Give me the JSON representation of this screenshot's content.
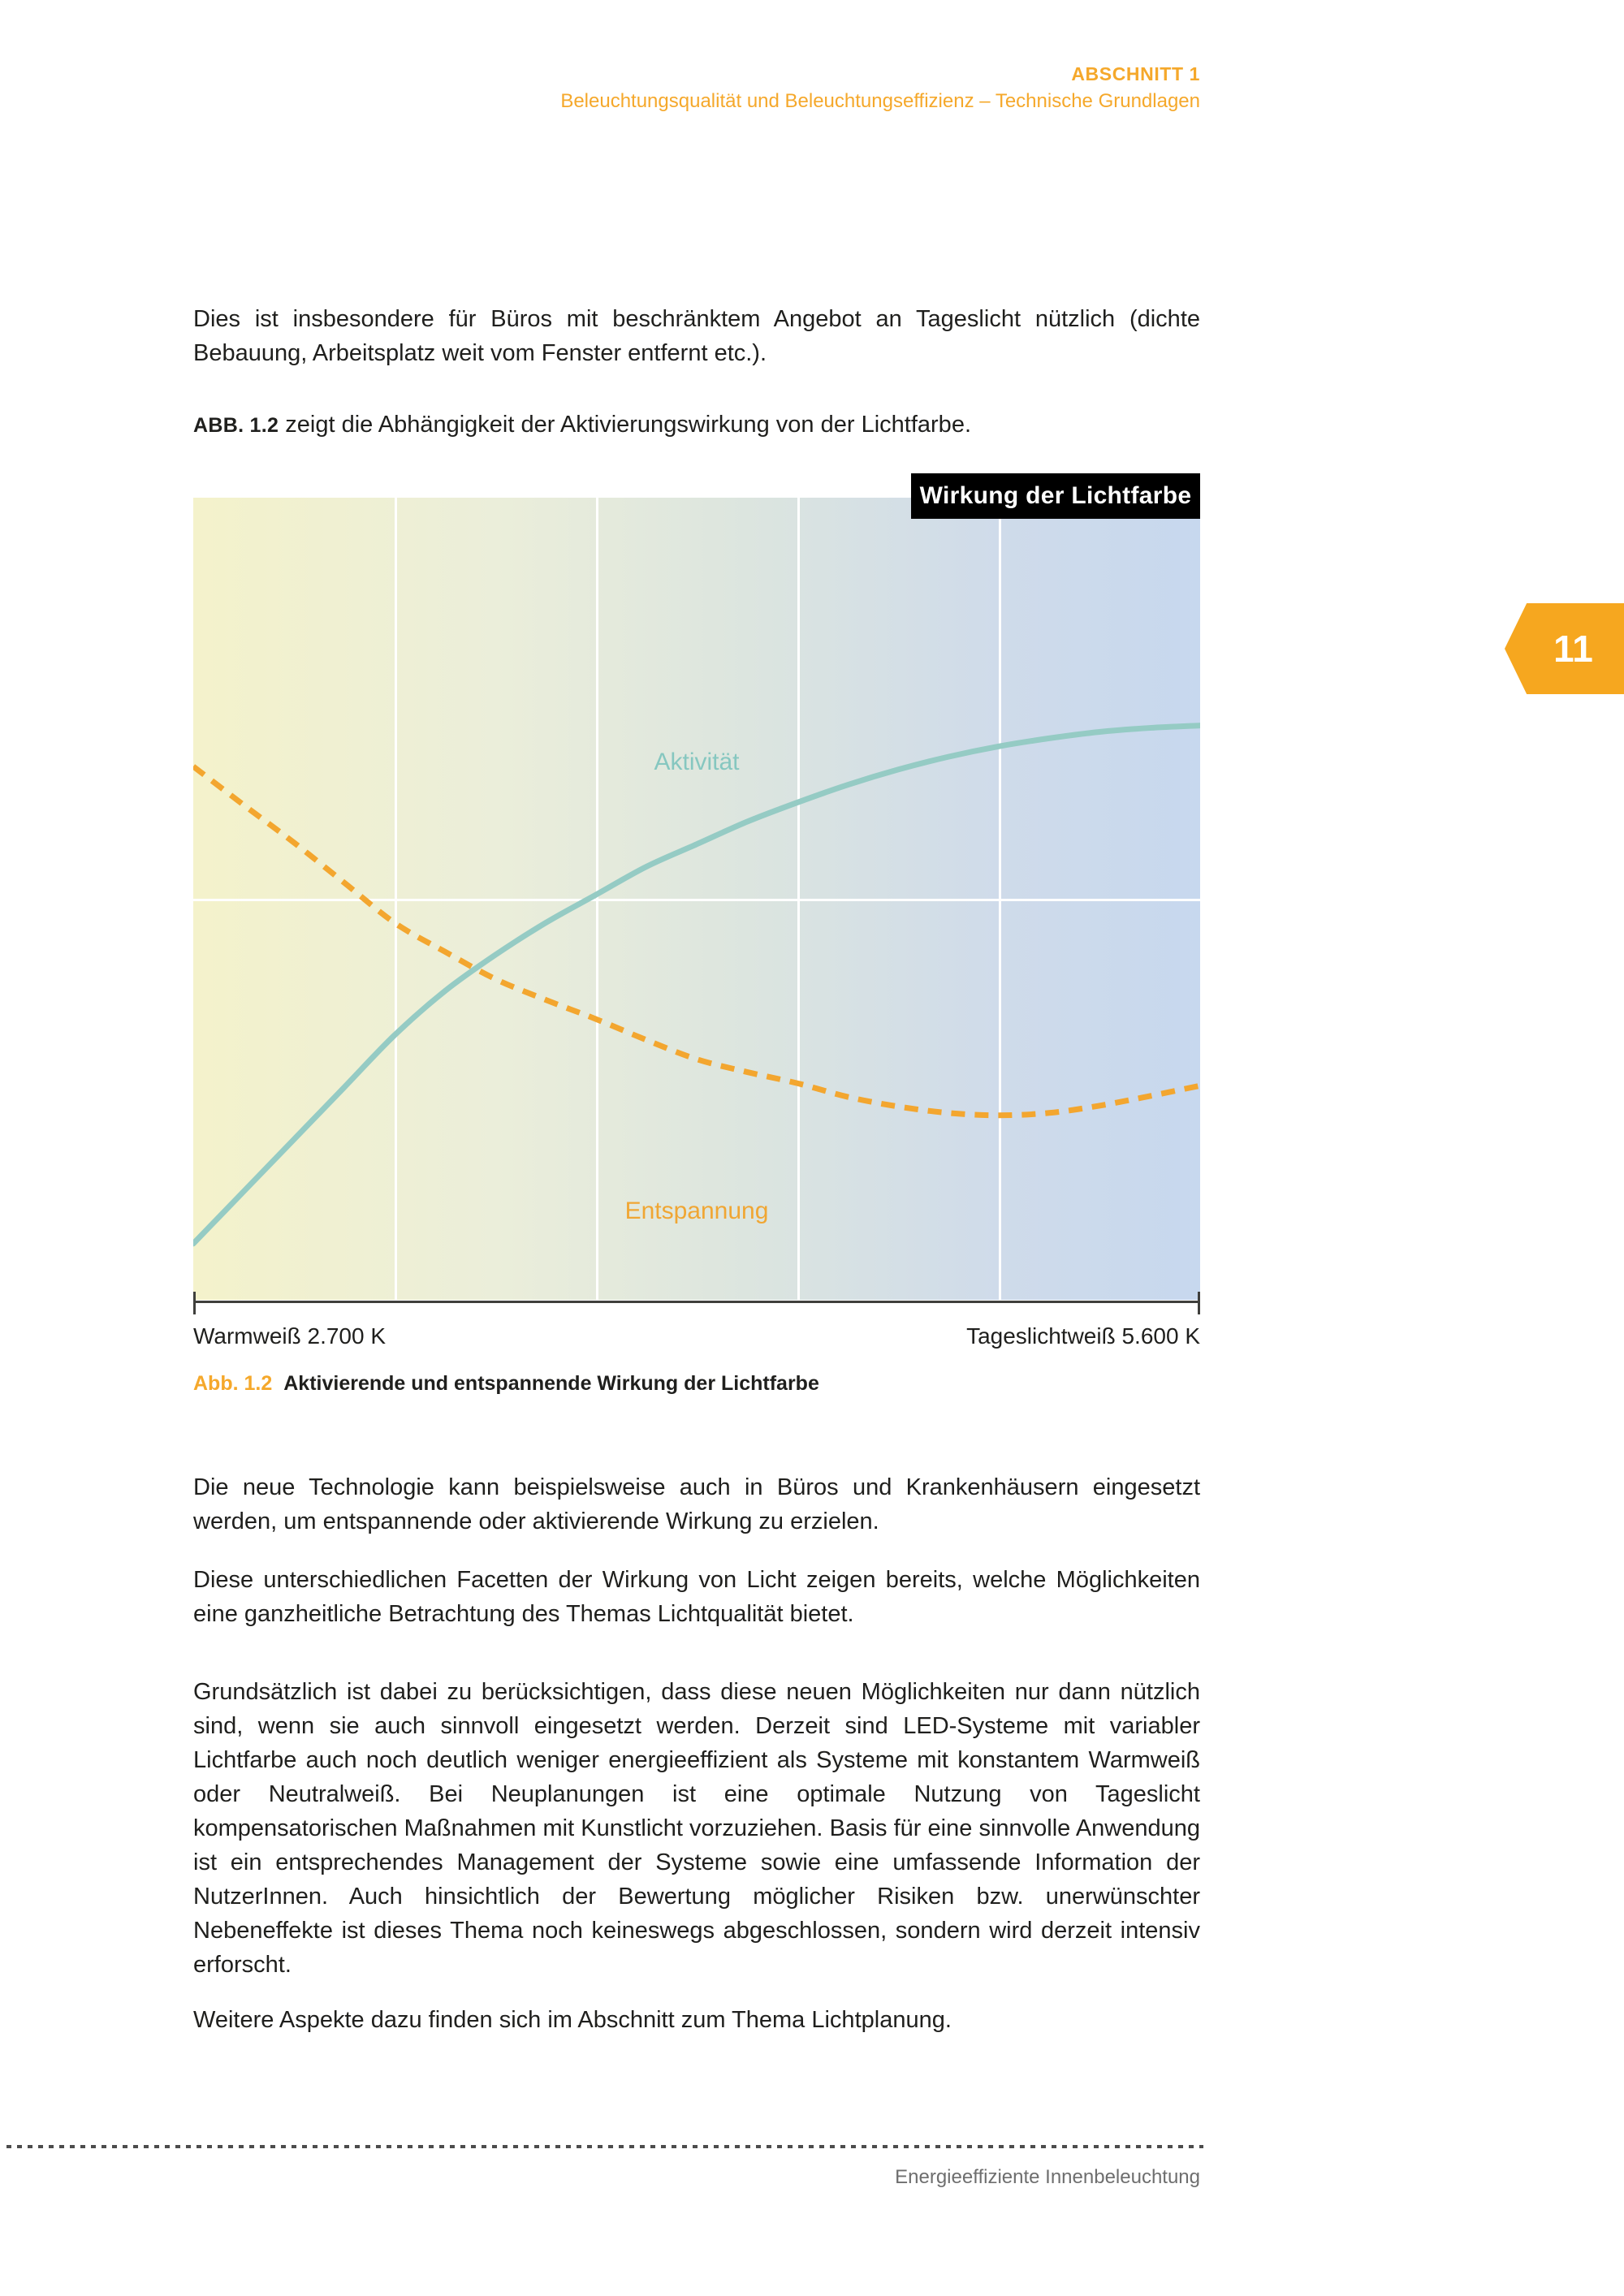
{
  "header": {
    "kicker": "ABSCHNITT 1",
    "subtitle": "Beleuchtungsqualität und Beleuchtungseffizienz – Technische Grundlagen"
  },
  "content": {
    "p1": "Dies ist insbesondere für Büros mit beschränktem Angebot an Tageslicht nützlich (dichte Bebauung, Arbeitsplatz weit vom Fenster entfernt etc.).",
    "fig_ref_label": "ABB. 1.2",
    "fig_ref_text": " zeigt die Abhängigkeit der Aktivierungswirkung von der Lichtfarbe.",
    "p2": "Die neue Technologie kann beispielsweise auch in Büros und Krankenhäusern eingesetzt werden, um entspannende oder aktivierende Wirkung zu erzielen.",
    "p3": "Diese unterschiedlichen Facetten der Wirkung von Licht zeigen bereits, welche Möglichkeiten eine ganzheitliche Betrachtung des Themas Lichtqualität bietet.",
    "p4": "Grundsätzlich ist dabei zu berücksichtigen, dass diese neuen Möglichkeiten nur dann nützlich sind, wenn sie auch sinnvoll eingesetzt werden. Derzeit sind LED-Systeme mit variabler Lichtfarbe auch noch deutlich weniger energieeffizient als Systeme mit konstantem Warmweiß oder Neutralweiß. Bei Neuplanungen ist eine optimale Nutzung von Tageslicht kompensatorischen Maßnahmen mit Kunstlicht vorzuziehen. Basis für eine sinnvolle Anwendung ist ein entsprechendes Management der Systeme sowie eine umfassende Information der NutzerInnen. Auch hinsichtlich der Bewertung möglicher Risiken bzw. unerwünschter Nebeneffekte ist dieses Thema noch keineswegs abgeschlossen, sondern wird derzeit intensiv erforscht.",
    "p5": "Weitere Aspekte dazu finden sich im Abschnitt zum Thema Lichtplanung."
  },
  "figure": {
    "title": "Wirkung der Lichtfarbe",
    "caption_label": "Abb. 1.2",
    "caption_text": "Aktivierende und entspannende Wirkung der Lichtfarbe",
    "x_left_label": "Warmweiß 2.700 K",
    "x_right_label": "Tageslichtweiß 5.600 K"
  },
  "chart_data": {
    "type": "line",
    "title": "Wirkung der Lichtfarbe",
    "xlabel_left": "Warmweiß 2.700 K",
    "xlabel_right": "Tageslichtweiß 5.600 K",
    "x_range_kelvin": [
      2700,
      5600
    ],
    "grid": {
      "vertical_lines_pct": [
        20,
        40,
        60,
        80
      ],
      "horizontal_lines_pct": [
        50
      ],
      "grid_color": "#ffffff"
    },
    "background_gradient": [
      "#f4f2cb",
      "#ebeeda",
      "#dce5df",
      "#cfdbea",
      "#c7d8ee"
    ],
    "note": "y values are percent from plot top (higher number = lower activity level)",
    "series": [
      {
        "name": "Aktivität",
        "color": "#95cbc4",
        "style": "solid",
        "label_pos_pct": [
          50,
          33
        ],
        "points_pct": [
          [
            0,
            93
          ],
          [
            5,
            86.5
          ],
          [
            10,
            80
          ],
          [
            15,
            73.5
          ],
          [
            20,
            67
          ],
          [
            25,
            61.5
          ],
          [
            30,
            57
          ],
          [
            35,
            53
          ],
          [
            40,
            49.5
          ],
          [
            45,
            46
          ],
          [
            50,
            43.2
          ],
          [
            55,
            40.4
          ],
          [
            60,
            38
          ],
          [
            65,
            35.8
          ],
          [
            70,
            33.9
          ],
          [
            75,
            32.3
          ],
          [
            80,
            31
          ],
          [
            85,
            30
          ],
          [
            90,
            29.2
          ],
          [
            95,
            28.7
          ],
          [
            100,
            28.4
          ]
        ]
      },
      {
        "name": "Entspannung",
        "color": "#f3a62f",
        "style": "dashed",
        "label_pos_pct": [
          50,
          89
        ],
        "points_pct": [
          [
            0,
            33.5
          ],
          [
            5,
            38.3
          ],
          [
            10,
            43
          ],
          [
            15,
            48
          ],
          [
            20,
            53
          ],
          [
            25,
            56.6
          ],
          [
            30,
            60
          ],
          [
            35,
            62.6
          ],
          [
            40,
            65
          ],
          [
            45,
            67.6
          ],
          [
            50,
            70
          ],
          [
            55,
            71.6
          ],
          [
            60,
            73
          ],
          [
            65,
            74.7
          ],
          [
            70,
            75.9
          ],
          [
            75,
            76.7
          ],
          [
            80,
            77
          ],
          [
            85,
            76.7
          ],
          [
            90,
            75.8
          ],
          [
            95,
            74.6
          ],
          [
            100,
            73.3
          ]
        ]
      }
    ]
  },
  "page_tab": {
    "number": "11",
    "color": "#f6a71f"
  },
  "footer": {
    "text": "Energieeffiziente Innenbeleuchtung"
  },
  "colors": {
    "accent_orange": "#f5a82b",
    "teal": "#95cbc4",
    "body_text": "#1f1f1d",
    "footer_gray": "#6e6e6e",
    "title_box": "#000000"
  }
}
